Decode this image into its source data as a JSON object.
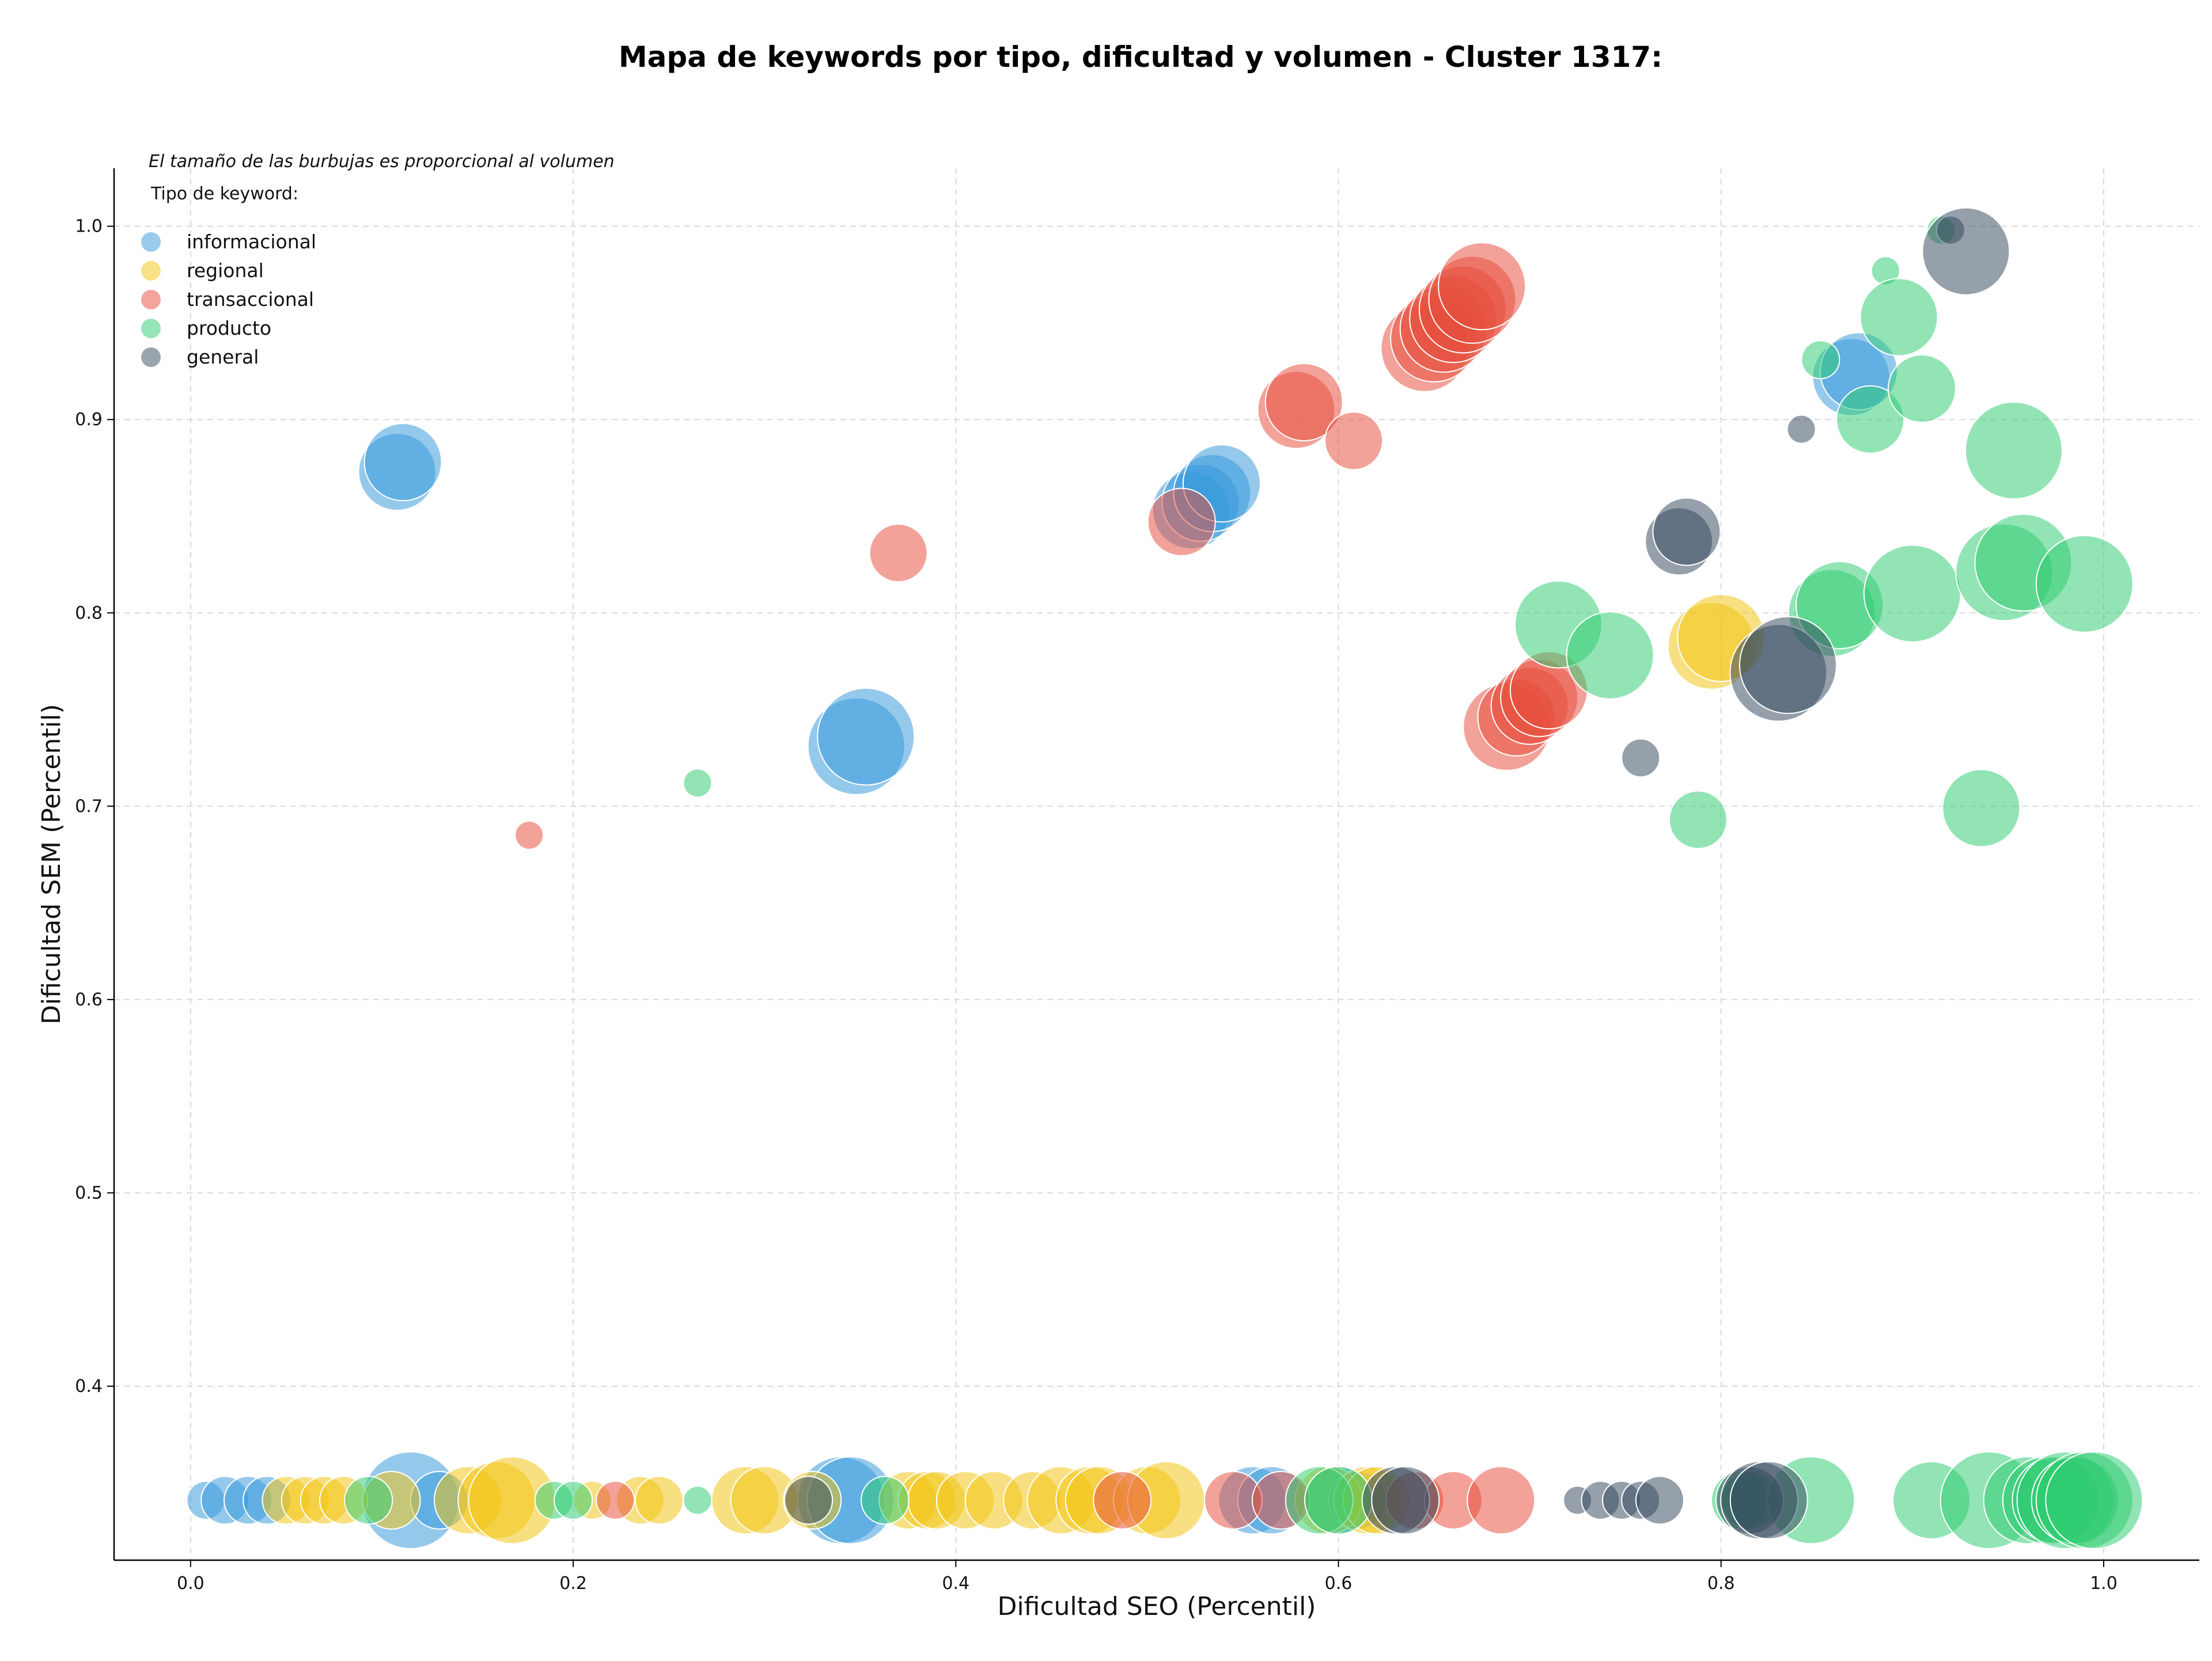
{
  "chart_data": {
    "type": "scatter",
    "title": "Mapa de keywords por tipo, dificultad y volumen - Cluster 1317:",
    "xlabel": "Dificultad SEO (Percentil)",
    "ylabel": "Dificultad SEM (Percentil)",
    "note": "El tamaño de las burbujas es proporcional al volumen",
    "legend_title": "Tipo de keyword:",
    "legend_position": "top-left",
    "grid": true,
    "xlim": [
      -0.04,
      1.05
    ],
    "ylim": [
      0.31,
      1.03
    ],
    "xticks": [
      0.0,
      0.2,
      0.4,
      0.6,
      0.8,
      1.0
    ],
    "xtick_labels": [
      "0.0",
      "0.2",
      "0.4",
      "0.6",
      "0.8",
      "1.0"
    ],
    "yticks": [
      0.4,
      0.5,
      0.6,
      0.7,
      0.8,
      0.9,
      1.0
    ],
    "ytick_labels": [
      "0.4",
      "0.5",
      "0.6",
      "0.7",
      "0.8",
      "0.9",
      "1.0"
    ],
    "series": [
      {
        "name": "informacional",
        "color": "#3498db",
        "points": [
          [
            0.108,
            0.873,
            6
          ],
          [
            0.111,
            0.878,
            6
          ],
          [
            0.348,
            0.731,
            8
          ],
          [
            0.353,
            0.736,
            8
          ],
          [
            0.523,
            0.853,
            6
          ],
          [
            0.528,
            0.857,
            6
          ],
          [
            0.534,
            0.862,
            6
          ],
          [
            0.539,
            0.867,
            6
          ],
          [
            0.868,
            0.922,
            6
          ],
          [
            0.872,
            0.925,
            6
          ],
          [
            0.008,
            0.341,
            2
          ],
          [
            0.018,
            0.341,
            3
          ],
          [
            0.03,
            0.341,
            3
          ],
          [
            0.04,
            0.341,
            3
          ],
          [
            0.115,
            0.341,
            8
          ],
          [
            0.13,
            0.341,
            4
          ],
          [
            0.34,
            0.341,
            7
          ],
          [
            0.345,
            0.341,
            7
          ],
          [
            0.555,
            0.341,
            5
          ],
          [
            0.565,
            0.341,
            5
          ],
          [
            0.6,
            0.341,
            5
          ],
          [
            0.61,
            0.341,
            4
          ]
        ]
      },
      {
        "name": "regional",
        "color": "#f1c40f",
        "points": [
          [
            0.795,
            0.783,
            7
          ],
          [
            0.8,
            0.787,
            7
          ],
          [
            0.05,
            0.341,
            3
          ],
          [
            0.06,
            0.341,
            3
          ],
          [
            0.07,
            0.341,
            3
          ],
          [
            0.08,
            0.341,
            3
          ],
          [
            0.105,
            0.341,
            4
          ],
          [
            0.145,
            0.341,
            5
          ],
          [
            0.16,
            0.341,
            6
          ],
          [
            0.168,
            0.341,
            7
          ],
          [
            0.21,
            0.341,
            2
          ],
          [
            0.235,
            0.341,
            3
          ],
          [
            0.245,
            0.341,
            3
          ],
          [
            0.29,
            0.341,
            5
          ],
          [
            0.3,
            0.341,
            5
          ],
          [
            0.325,
            0.341,
            4
          ],
          [
            0.375,
            0.341,
            4
          ],
          [
            0.385,
            0.341,
            4
          ],
          [
            0.39,
            0.341,
            4
          ],
          [
            0.405,
            0.341,
            4
          ],
          [
            0.42,
            0.341,
            4
          ],
          [
            0.44,
            0.341,
            4
          ],
          [
            0.455,
            0.341,
            5
          ],
          [
            0.47,
            0.341,
            5
          ],
          [
            0.475,
            0.341,
            5
          ],
          [
            0.5,
            0.341,
            5
          ],
          [
            0.51,
            0.341,
            6
          ],
          [
            0.595,
            0.341,
            5
          ],
          [
            0.615,
            0.341,
            5
          ],
          [
            0.62,
            0.341,
            5
          ]
        ]
      },
      {
        "name": "transaccional",
        "color": "#e74c3c",
        "points": [
          [
            0.177,
            0.685,
            1
          ],
          [
            0.37,
            0.831,
            4
          ],
          [
            0.518,
            0.847,
            5
          ],
          [
            0.578,
            0.905,
            6
          ],
          [
            0.582,
            0.909,
            6
          ],
          [
            0.608,
            0.889,
            4
          ],
          [
            0.645,
            0.937,
            7
          ],
          [
            0.65,
            0.942,
            7
          ],
          [
            0.655,
            0.947,
            7
          ],
          [
            0.66,
            0.952,
            7
          ],
          [
            0.665,
            0.957,
            7
          ],
          [
            0.67,
            0.962,
            7
          ],
          [
            0.675,
            0.969,
            7
          ],
          [
            0.688,
            0.741,
            7
          ],
          [
            0.693,
            0.746,
            6
          ],
          [
            0.7,
            0.752,
            6
          ],
          [
            0.705,
            0.756,
            6
          ],
          [
            0.71,
            0.76,
            6
          ],
          [
            0.222,
            0.341,
            2
          ],
          [
            0.487,
            0.341,
            4
          ],
          [
            0.545,
            0.341,
            4
          ],
          [
            0.57,
            0.341,
            4
          ],
          [
            0.64,
            0.341,
            4
          ],
          [
            0.66,
            0.341,
            4
          ],
          [
            0.685,
            0.341,
            5
          ]
        ]
      },
      {
        "name": "producto",
        "color": "#2ecc71",
        "points": [
          [
            0.265,
            0.712,
            1
          ],
          [
            0.715,
            0.794,
            7
          ],
          [
            0.742,
            0.778,
            7
          ],
          [
            0.788,
            0.693,
            4
          ],
          [
            0.852,
            0.931,
            2
          ],
          [
            0.858,
            0.8,
            7
          ],
          [
            0.862,
            0.804,
            7
          ],
          [
            0.878,
            0.9,
            5
          ],
          [
            0.886,
            0.977,
            1
          ],
          [
            0.893,
            0.953,
            6
          ],
          [
            0.9,
            0.81,
            8
          ],
          [
            0.905,
            0.916,
            5
          ],
          [
            0.915,
            0.998,
            1
          ],
          [
            0.936,
            0.699,
            6
          ],
          [
            0.948,
            0.821,
            8
          ],
          [
            0.953,
            0.884,
            8
          ],
          [
            0.958,
            0.826,
            8
          ],
          [
            0.99,
            0.815,
            8
          ],
          [
            0.093,
            0.341,
            3
          ],
          [
            0.19,
            0.341,
            2
          ],
          [
            0.2,
            0.341,
            2
          ],
          [
            0.265,
            0.341,
            1
          ],
          [
            0.363,
            0.341,
            3
          ],
          [
            0.59,
            0.341,
            5
          ],
          [
            0.6,
            0.341,
            5
          ],
          [
            0.81,
            0.341,
            4
          ],
          [
            0.815,
            0.341,
            4
          ],
          [
            0.847,
            0.341,
            7
          ],
          [
            0.91,
            0.341,
            6
          ],
          [
            0.94,
            0.341,
            8
          ],
          [
            0.96,
            0.341,
            7
          ],
          [
            0.97,
            0.341,
            7
          ],
          [
            0.975,
            0.341,
            7
          ],
          [
            0.98,
            0.341,
            8
          ],
          [
            0.985,
            0.341,
            7
          ],
          [
            0.99,
            0.341,
            8
          ],
          [
            0.995,
            0.341,
            8
          ]
        ]
      },
      {
        "name": "general",
        "color": "#34495e",
        "points": [
          [
            0.758,
            0.725,
            2
          ],
          [
            0.778,
            0.837,
            5
          ],
          [
            0.782,
            0.842,
            5
          ],
          [
            0.83,
            0.769,
            8
          ],
          [
            0.835,
            0.773,
            8
          ],
          [
            0.842,
            0.895,
            1
          ],
          [
            0.92,
            0.998,
            1
          ],
          [
            0.928,
            0.987,
            7
          ],
          [
            0.323,
            0.341,
            3
          ],
          [
            0.63,
            0.341,
            5
          ],
          [
            0.635,
            0.341,
            5
          ],
          [
            0.725,
            0.341,
            1
          ],
          [
            0.737,
            0.341,
            2
          ],
          [
            0.748,
            0.341,
            2
          ],
          [
            0.758,
            0.341,
            2
          ],
          [
            0.768,
            0.341,
            3
          ],
          [
            0.815,
            0.341,
            5
          ],
          [
            0.82,
            0.341,
            6
          ],
          [
            0.825,
            0.341,
            6
          ]
        ]
      }
    ]
  }
}
